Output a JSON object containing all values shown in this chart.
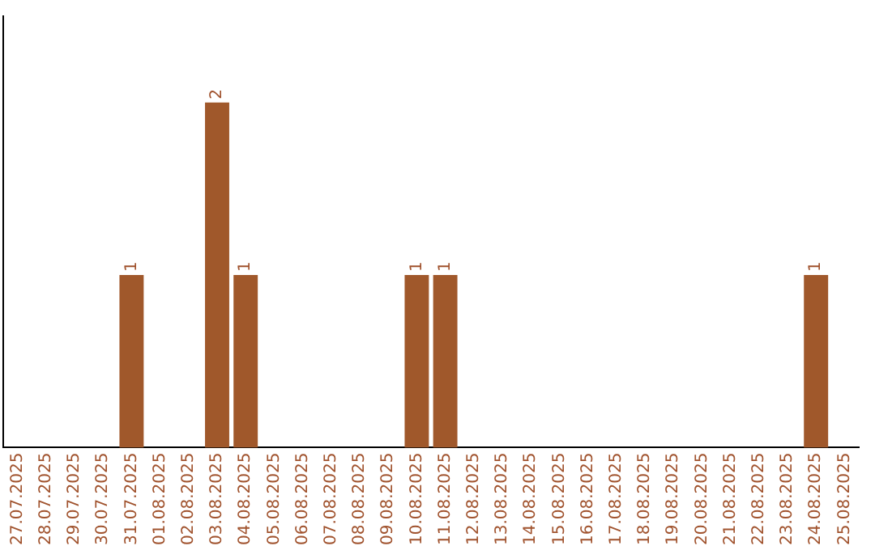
{
  "chart_data": {
    "type": "bar",
    "categories": [
      "27.07.2025",
      "28.07.2025",
      "29.07.2025",
      "30.07.2025",
      "31.07.2025",
      "01.08.2025",
      "02.08.2025",
      "03.08.2025",
      "04.08.2025",
      "05.08.2025",
      "06.08.2025",
      "07.08.2025",
      "08.08.2025",
      "09.08.2025",
      "10.08.2025",
      "11.08.2025",
      "12.08.2025",
      "13.08.2025",
      "14.08.2025",
      "15.08.2025",
      "16.08.2025",
      "17.08.2025",
      "18.08.2025",
      "19.08.2025",
      "20.08.2025",
      "21.08.2025",
      "22.08.2025",
      "23.08.2025",
      "24.08.2025",
      "25.08.2025"
    ],
    "values": [
      0,
      0,
      0,
      0,
      1,
      0,
      0,
      2,
      1,
      0,
      0,
      0,
      0,
      0,
      1,
      1,
      0,
      0,
      0,
      0,
      0,
      0,
      0,
      0,
      0,
      0,
      0,
      0,
      1,
      0
    ],
    "value_labels": [
      null,
      null,
      null,
      null,
      "1",
      null,
      null,
      "2",
      "1",
      null,
      null,
      null,
      null,
      null,
      "1",
      "1",
      null,
      null,
      null,
      null,
      null,
      null,
      null,
      null,
      null,
      null,
      null,
      null,
      "1",
      null
    ],
    "color": "#a0582b",
    "tick_labels": "x",
    "grid": false,
    "legend": false
  }
}
